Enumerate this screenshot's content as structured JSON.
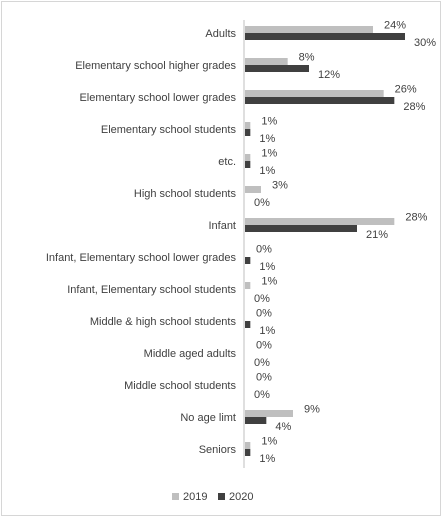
{
  "chart_data": {
    "type": "bar",
    "orientation": "horizontal",
    "categories": [
      "Adults",
      "Elementary school higher grades",
      "Elementary school lower grades",
      "Elementary school students",
      "etc.",
      "High school students",
      "Infant",
      "Infant, Elementary school lower grades",
      "Infant, Elementary school students",
      "Middle & high school students",
      "Middle aged adults",
      "Middle school students",
      "No age limt",
      "Seniors"
    ],
    "series": [
      {
        "name": "2019",
        "color": "#bfbfbf",
        "values": [
          24,
          8,
          26,
          1,
          1,
          3,
          28,
          0,
          1,
          0,
          0,
          0,
          9,
          1
        ],
        "labels": [
          "24%",
          "8%",
          "26%",
          "1%",
          "1%",
          "3%",
          "28%",
          "0%",
          "1%",
          "0%",
          "0%",
          "0%",
          "9%",
          "1%"
        ]
      },
      {
        "name": "2020",
        "color": "#404040",
        "values": [
          30,
          12,
          28,
          1,
          1,
          0,
          21,
          1,
          0,
          1,
          0,
          0,
          4,
          1
        ],
        "labels": [
          "30%",
          "12%",
          "28%",
          "1%",
          "1%",
          "0%",
          "21%",
          "1%",
          "0%",
          "1%",
          "0%",
          "0%",
          "4%",
          "1%"
        ]
      }
    ],
    "xlim": [
      0,
      30
    ],
    "grid": false,
    "legend_position": "bottom"
  }
}
